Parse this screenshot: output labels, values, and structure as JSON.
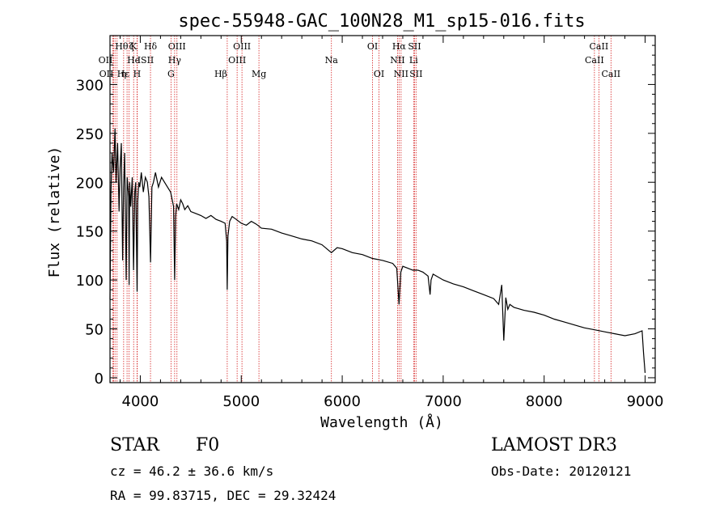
{
  "chart_data": {
    "type": "line",
    "title": "spec-55948-GAC_100N28_M1_sp15-016.fits",
    "xlabel": "Wavelength (Å)",
    "ylabel": "Flux (relative)",
    "xlim": [
      3700,
      9100
    ],
    "ylim": [
      -5,
      350
    ],
    "xticks": [
      4000,
      5000,
      6000,
      7000,
      8000,
      9000
    ],
    "yticks": [
      0,
      50,
      100,
      150,
      200,
      250,
      300
    ],
    "series": [
      {
        "name": "spectrum",
        "x": [
          3700,
          3710,
          3720,
          3735,
          3750,
          3760,
          3775,
          3790,
          3800,
          3812,
          3825,
          3835,
          3845,
          3860,
          3870,
          3885,
          3889,
          3895,
          3905,
          3920,
          3933,
          3945,
          3955,
          3968,
          3975,
          3985,
          3995,
          4010,
          4030,
          4050,
          4070,
          4085,
          4101,
          4115,
          4130,
          4150,
          4180,
          4210,
          4240,
          4270,
          4300,
          4320,
          4330,
          4340,
          4350,
          4360,
          4380,
          4400,
          4420,
          4440,
          4470,
          4500,
          4550,
          4600,
          4650,
          4700,
          4750,
          4800,
          4840,
          4855,
          4861,
          4868,
          4885,
          4910,
          4950,
          5000,
          5050,
          5100,
          5150,
          5200,
          5300,
          5400,
          5500,
          5600,
          5700,
          5800,
          5893,
          5950,
          6000,
          6100,
          6200,
          6300,
          6400,
          6500,
          6540,
          6563,
          6580,
          6600,
          6650,
          6700,
          6750,
          6800,
          6850,
          6870,
          6880,
          6900,
          7000,
          7100,
          7200,
          7300,
          7400,
          7500,
          7550,
          7580,
          7600,
          7620,
          7640,
          7660,
          7700,
          7800,
          7900,
          8000,
          8100,
          8200,
          8300,
          8400,
          8500,
          8600,
          8700,
          8800,
          8900,
          8970,
          8985,
          9000
        ],
        "values": [
          80,
          190,
          230,
          210,
          255,
          200,
          240,
          170,
          215,
          240,
          120,
          195,
          230,
          100,
          205,
          185,
          95,
          200,
          175,
          205,
          110,
          190,
          200,
          88,
          180,
          200,
          195,
          210,
          190,
          205,
          200,
          185,
          118,
          195,
          200,
          210,
          195,
          205,
          200,
          195,
          190,
          180,
          175,
          100,
          165,
          178,
          172,
          182,
          178,
          172,
          176,
          170,
          168,
          166,
          163,
          166,
          162,
          160,
          158,
          140,
          90,
          145,
          160,
          165,
          162,
          158,
          156,
          160,
          157,
          153,
          152,
          148,
          145,
          142,
          140,
          136,
          128,
          133,
          132,
          128,
          126,
          122,
          120,
          117,
          112,
          75,
          108,
          114,
          112,
          110,
          110,
          108,
          104,
          85,
          100,
          106,
          100,
          96,
          93,
          89,
          85,
          81,
          75,
          95,
          38,
          82,
          70,
          75,
          72,
          69,
          67,
          64,
          60,
          57,
          54,
          51,
          49,
          47,
          45,
          43,
          45,
          48,
          25,
          5
        ]
      }
    ],
    "lines": [
      {
        "wave": 3727,
        "label": "OII",
        "row": 2,
        "anchor": "end"
      },
      {
        "wave": 3735,
        "label": "OII",
        "row": 3,
        "anchor": "end"
      },
      {
        "wave": 3750,
        "label": "Hθ",
        "row": 1,
        "anchor": "start"
      },
      {
        "wave": 3770,
        "label": "Hε",
        "row": 3,
        "anchor": "start"
      },
      {
        "wave": 3835,
        "label": "η",
        "row": 3,
        "anchor": "middle"
      },
      {
        "wave": 3869,
        "label": "He",
        "row": 2,
        "anchor": "start"
      },
      {
        "wave": 3889,
        "label": "ζ",
        "row": 1,
        "anchor": "start"
      },
      {
        "wave": 3934,
        "label": "K",
        "row": 1,
        "anchor": "middle"
      },
      {
        "wave": 3968,
        "label": "H",
        "row": 3,
        "anchor": "middle"
      },
      {
        "wave": 3970,
        "label": "ISII",
        "row": 2,
        "anchor": "start"
      },
      {
        "wave": 4101,
        "label": "Hδ",
        "row": 1,
        "anchor": "middle"
      },
      {
        "wave": 4304,
        "label": "G",
        "row": 3,
        "anchor": "middle"
      },
      {
        "wave": 4340,
        "label": "Hγ",
        "row": 2,
        "anchor": "middle"
      },
      {
        "wave": 4363,
        "label": "OIII",
        "row": 1,
        "anchor": "middle"
      },
      {
        "wave": 4861,
        "label": "Hβ",
        "row": 3,
        "anchor": "end"
      },
      {
        "wave": 4959,
        "label": "OIII",
        "row": 2,
        "anchor": "middle"
      },
      {
        "wave": 5007,
        "label": "OIII",
        "row": 1,
        "anchor": "middle"
      },
      {
        "wave": 5175,
        "label": "Mg",
        "row": 3,
        "anchor": "middle"
      },
      {
        "wave": 5893,
        "label": "Na",
        "row": 2,
        "anchor": "middle"
      },
      {
        "wave": 6300,
        "label": "OI",
        "row": 1,
        "anchor": "middle"
      },
      {
        "wave": 6364,
        "label": "OI",
        "row": 3,
        "anchor": "middle"
      },
      {
        "wave": 6548,
        "label": "NII",
        "row": 2,
        "anchor": "middle"
      },
      {
        "wave": 6563,
        "label": "Hα",
        "row": 1,
        "anchor": "middle"
      },
      {
        "wave": 6583,
        "label": "NII",
        "row": 3,
        "anchor": "middle"
      },
      {
        "wave": 6707,
        "label": "Li",
        "row": 2,
        "anchor": "middle"
      },
      {
        "wave": 6716,
        "label": "SII",
        "row": 1,
        "anchor": "middle"
      },
      {
        "wave": 6731,
        "label": "SII",
        "row": 3,
        "anchor": "middle"
      },
      {
        "wave": 8498,
        "label": "CaII",
        "row": 2,
        "anchor": "middle"
      },
      {
        "wave": 8542,
        "label": "CaII",
        "row": 1,
        "anchor": "middle"
      },
      {
        "wave": 8662,
        "label": "CaII",
        "row": 3,
        "anchor": "middle"
      }
    ],
    "colors": {
      "spectrum": "#000000",
      "line_marker": "#d62020",
      "axis": "#000000"
    }
  },
  "info": {
    "class_label": "STAR",
    "subclass": "F0",
    "survey": "LAMOST DR3",
    "cz": "cz = 46.2 ± 36.6 km/s",
    "obs_date": "Obs-Date: 20120121",
    "coords": "RA =  99.83715, DEC =  29.32424"
  }
}
